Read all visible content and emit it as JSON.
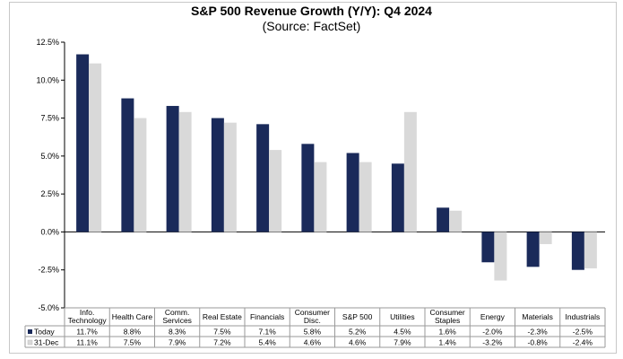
{
  "chart_data": {
    "type": "bar",
    "title": "S&P 500 Revenue Growth (Y/Y):  Q4 2024",
    "subtitle": "(Source: FactSet)",
    "y_ticks": [
      "12.5%",
      "10.0%",
      "7.5%",
      "5.0%",
      "2.5%",
      "0.0%",
      "-2.5%",
      "-5.0%"
    ],
    "ylim": [
      -5,
      12.5
    ],
    "categories": [
      [
        "Info.",
        "Technology"
      ],
      [
        "Health Care"
      ],
      [
        "Comm.",
        "Services"
      ],
      [
        "Real Estate"
      ],
      [
        "Financials"
      ],
      [
        "Consumer",
        "Disc."
      ],
      [
        "S&P 500"
      ],
      [
        "Utilities"
      ],
      [
        "Consumer",
        "Staples"
      ],
      [
        "Energy"
      ],
      [
        "Materials"
      ],
      [
        "Industrials"
      ]
    ],
    "series": [
      {
        "name": "Today",
        "color": "#1a2a5a",
        "values": [
          11.7,
          8.8,
          8.3,
          7.5,
          7.1,
          5.8,
          5.2,
          4.5,
          1.6,
          -2.0,
          -2.3,
          -2.5
        ],
        "labels": [
          "11.7%",
          "8.8%",
          "8.3%",
          "7.5%",
          "7.1%",
          "5.8%",
          "5.2%",
          "4.5%",
          "1.6%",
          "-2.0%",
          "-2.3%",
          "-2.5%"
        ]
      },
      {
        "name": "31-Dec",
        "color": "#d9d9d9",
        "values": [
          11.1,
          7.5,
          7.9,
          7.2,
          5.4,
          4.6,
          4.6,
          7.9,
          1.4,
          -3.2,
          -0.8,
          -2.4
        ],
        "labels": [
          "11.1%",
          "7.5%",
          "7.9%",
          "7.2%",
          "5.4%",
          "4.6%",
          "4.6%",
          "7.9%",
          "1.4%",
          "-3.2%",
          "-0.8%",
          "-2.4%"
        ]
      }
    ],
    "legend": "data-table"
  }
}
